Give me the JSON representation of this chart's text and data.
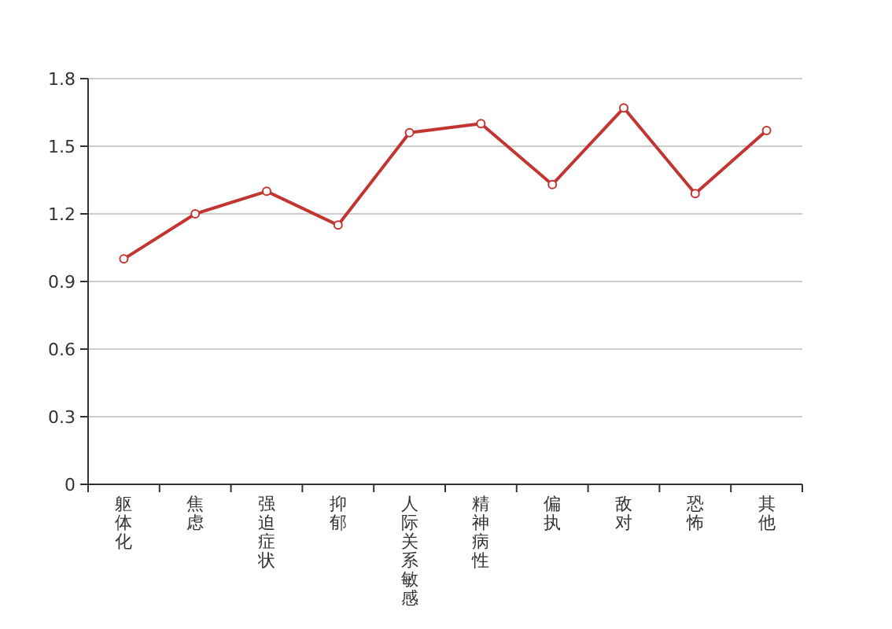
{
  "chart_data": {
    "type": "line",
    "categories": [
      "躯体化",
      "焦虑",
      "强迫症状",
      "抑郁",
      "人际关系敏感",
      "精神病性",
      "偏执",
      "敌对",
      "恐怖",
      "其他"
    ],
    "series": [
      {
        "color": "#c23531",
        "values": [
          1.0,
          1.2,
          1.3,
          1.15,
          1.56,
          1.6,
          1.33,
          1.67,
          1.29,
          1.57
        ]
      }
    ],
    "ylim": [
      0,
      1.8
    ],
    "yticks": [
      0,
      0.3,
      0.6,
      0.9,
      1.2,
      1.5,
      1.8
    ],
    "grid": "y",
    "marker": "circle",
    "line_style": "solid"
  }
}
